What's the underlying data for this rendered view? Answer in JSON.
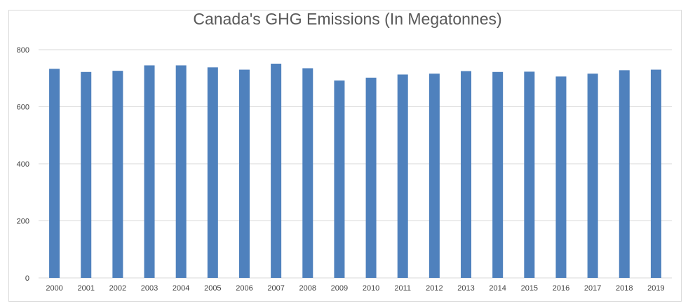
{
  "chart_data": {
    "type": "bar",
    "title": "Canada's GHG Emissions (In Megatonnes)",
    "xlabel": "",
    "ylabel": "",
    "categories": [
      "2000",
      "2001",
      "2002",
      "2003",
      "2004",
      "2005",
      "2006",
      "2007",
      "2008",
      "2009",
      "2010",
      "2011",
      "2012",
      "2013",
      "2014",
      "2015",
      "2016",
      "2017",
      "2018",
      "2019"
    ],
    "values": [
      733,
      722,
      726,
      745,
      745,
      738,
      730,
      751,
      735,
      692,
      702,
      713,
      716,
      725,
      722,
      723,
      706,
      716,
      728,
      730
    ],
    "ylim": [
      0,
      800
    ],
    "yticks": [
      0,
      200,
      400,
      600,
      800
    ],
    "grid": true,
    "legend": "none",
    "bar_color": "#4f81bd",
    "grid_color": "#d9d9d9"
  }
}
